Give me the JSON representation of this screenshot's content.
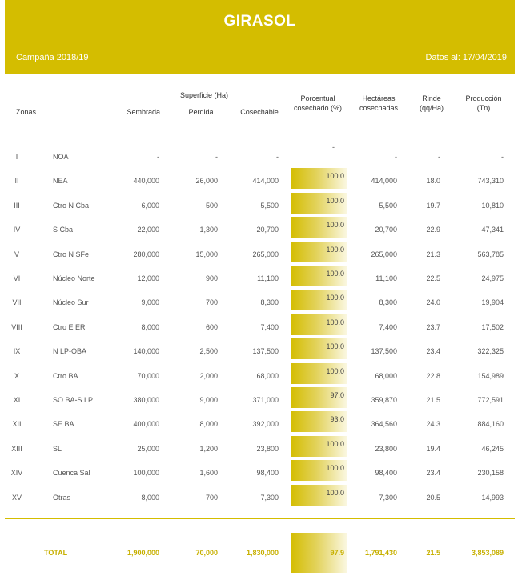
{
  "header": {
    "title": "GIRASOL",
    "campaign": "Campaña 2018/19",
    "date": "Datos al: 17/04/2019"
  },
  "columns": {
    "zonas": "Zonas",
    "superficie": "Superficie (Ha)",
    "sembrada": "Sembrada",
    "perdida": "Perdida",
    "cosechable": "Cosechable",
    "porcentual_1": "Porcentual",
    "porcentual_2": "cosechado (%)",
    "hectareas_1": "Hectáreas",
    "hectareas_2": "cosechadas",
    "rinde_1": "Rinde",
    "rinde_2": "(qq/Ha)",
    "produccion_1": "Producción",
    "produccion_2": "(Tn)"
  },
  "rows": [
    {
      "num": "I",
      "zona": "NOA",
      "sembrada": "-",
      "perdida": "-",
      "cosechable": "-",
      "pct": "-",
      "ha": "-",
      "rinde": "-",
      "prod": "-",
      "pct_value": 0
    },
    {
      "num": "II",
      "zona": "NEA",
      "sembrada": "440,000",
      "perdida": "26,000",
      "cosechable": "414,000",
      "pct": "100.0",
      "ha": "414,000",
      "rinde": "18.0",
      "prod": "743,310",
      "pct_value": 100
    },
    {
      "num": "III",
      "zona": "Ctro N Cba",
      "sembrada": "6,000",
      "perdida": "500",
      "cosechable": "5,500",
      "pct": "100.0",
      "ha": "5,500",
      "rinde": "19.7",
      "prod": "10,810",
      "pct_value": 100
    },
    {
      "num": "IV",
      "zona": "S Cba",
      "sembrada": "22,000",
      "perdida": "1,300",
      "cosechable": "20,700",
      "pct": "100.0",
      "ha": "20,700",
      "rinde": "22.9",
      "prod": "47,341",
      "pct_value": 100
    },
    {
      "num": "V",
      "zona": "Ctro N SFe",
      "sembrada": "280,000",
      "perdida": "15,000",
      "cosechable": "265,000",
      "pct": "100.0",
      "ha": "265,000",
      "rinde": "21.3",
      "prod": "563,785",
      "pct_value": 100
    },
    {
      "num": "VI",
      "zona": "Núcleo Norte",
      "sembrada": "12,000",
      "perdida": "900",
      "cosechable": "11,100",
      "pct": "100.0",
      "ha": "11,100",
      "rinde": "22.5",
      "prod": "24,975",
      "pct_value": 100
    },
    {
      "num": "VII",
      "zona": "Núcleo Sur",
      "sembrada": "9,000",
      "perdida": "700",
      "cosechable": "8,300",
      "pct": "100.0",
      "ha": "8,300",
      "rinde": "24.0",
      "prod": "19,904",
      "pct_value": 100
    },
    {
      "num": "VIII",
      "zona": "Ctro E ER",
      "sembrada": "8,000",
      "perdida": "600",
      "cosechable": "7,400",
      "pct": "100.0",
      "ha": "7,400",
      "rinde": "23.7",
      "prod": "17,502",
      "pct_value": 100
    },
    {
      "num": "IX",
      "zona": "N LP-OBA",
      "sembrada": "140,000",
      "perdida": "2,500",
      "cosechable": "137,500",
      "pct": "100.0",
      "ha": "137,500",
      "rinde": "23.4",
      "prod": "322,325",
      "pct_value": 100
    },
    {
      "num": "X",
      "zona": "Ctro BA",
      "sembrada": "70,000",
      "perdida": "2,000",
      "cosechable": "68,000",
      "pct": "100.0",
      "ha": "68,000",
      "rinde": "22.8",
      "prod": "154,989",
      "pct_value": 100
    },
    {
      "num": "XI",
      "zona": "SO BA-S LP",
      "sembrada": "380,000",
      "perdida": "9,000",
      "cosechable": "371,000",
      "pct": "97.0",
      "ha": "359,870",
      "rinde": "21.5",
      "prod": "772,591",
      "pct_value": 97
    },
    {
      "num": "XII",
      "zona": "SE BA",
      "sembrada": "400,000",
      "perdida": "8,000",
      "cosechable": "392,000",
      "pct": "93.0",
      "ha": "364,560",
      "rinde": "24.3",
      "prod": "884,160",
      "pct_value": 93
    },
    {
      "num": "XIII",
      "zona": "SL",
      "sembrada": "25,000",
      "perdida": "1,200",
      "cosechable": "23,800",
      "pct": "100.0",
      "ha": "23,800",
      "rinde": "19.4",
      "prod": "46,245",
      "pct_value": 100
    },
    {
      "num": "XIV",
      "zona": "Cuenca Sal",
      "sembrada": "100,000",
      "perdida": "1,600",
      "cosechable": "98,400",
      "pct": "100.0",
      "ha": "98,400",
      "rinde": "23.4",
      "prod": "230,158",
      "pct_value": 100
    },
    {
      "num": "XV",
      "zona": "Otras",
      "sembrada": "8,000",
      "perdida": "700",
      "cosechable": "7,300",
      "pct": "100.0",
      "ha": "7,300",
      "rinde": "20.5",
      "prod": "14,993",
      "pct_value": 100
    }
  ],
  "total": {
    "label": "TOTAL",
    "sembrada": "1,900,000",
    "perdida": "70,000",
    "cosechable": "1,830,000",
    "pct": "97.9",
    "ha": "1,791,430",
    "rinde": "21.5",
    "prod": "3,853,089"
  },
  "colors": {
    "accent": "#d4bd00",
    "total_text": "#c7b000"
  }
}
